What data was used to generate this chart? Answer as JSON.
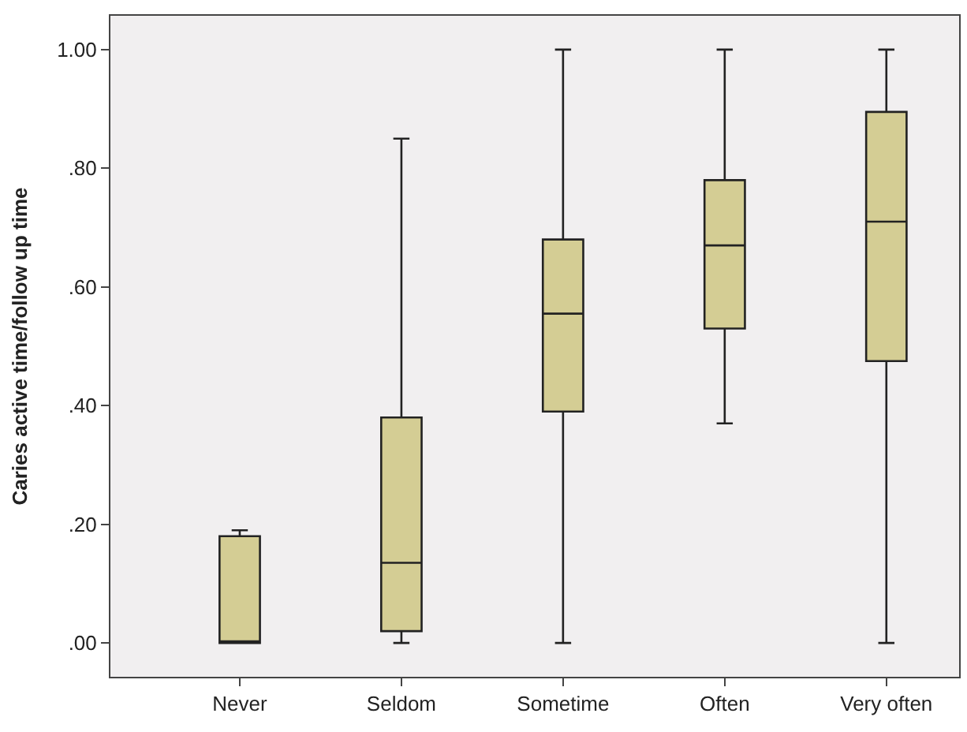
{
  "chart_data": {
    "type": "box",
    "ylabel": "Caries active time/follow up time",
    "categories": [
      "Never",
      "Seldom",
      "Sometime",
      "Often",
      "Very often"
    ],
    "boxes": [
      {
        "low": 0,
        "q1": 0,
        "median": 0,
        "q3": 0.18,
        "high": 0.19
      },
      {
        "low": 0,
        "q1": 0.02,
        "median": 0.135,
        "q3": 0.38,
        "high": 0.85
      },
      {
        "low": 0,
        "q1": 0.39,
        "median": 0.555,
        "q3": 0.68,
        "high": 1.0
      },
      {
        "low": 0.37,
        "q1": 0.53,
        "median": 0.67,
        "q3": 0.78,
        "high": 1.0
      },
      {
        "low": 0,
        "q1": 0.475,
        "median": 0.71,
        "q3": 0.895,
        "high": 1.0
      }
    ],
    "color": "#d4cd94",
    "ylim": [
      -0.057,
      1.057
    ],
    "yticks": [
      {
        "value": 0,
        "label": ".00"
      },
      {
        "value": 0.2,
        "label": ".20"
      },
      {
        "value": 0.4,
        "label": ".40"
      },
      {
        "value": 0.6,
        "label": ".60"
      },
      {
        "value": 0.8,
        "label": ".80"
      },
      {
        "value": 1.0,
        "label": "1.00"
      }
    ],
    "grid": false
  }
}
